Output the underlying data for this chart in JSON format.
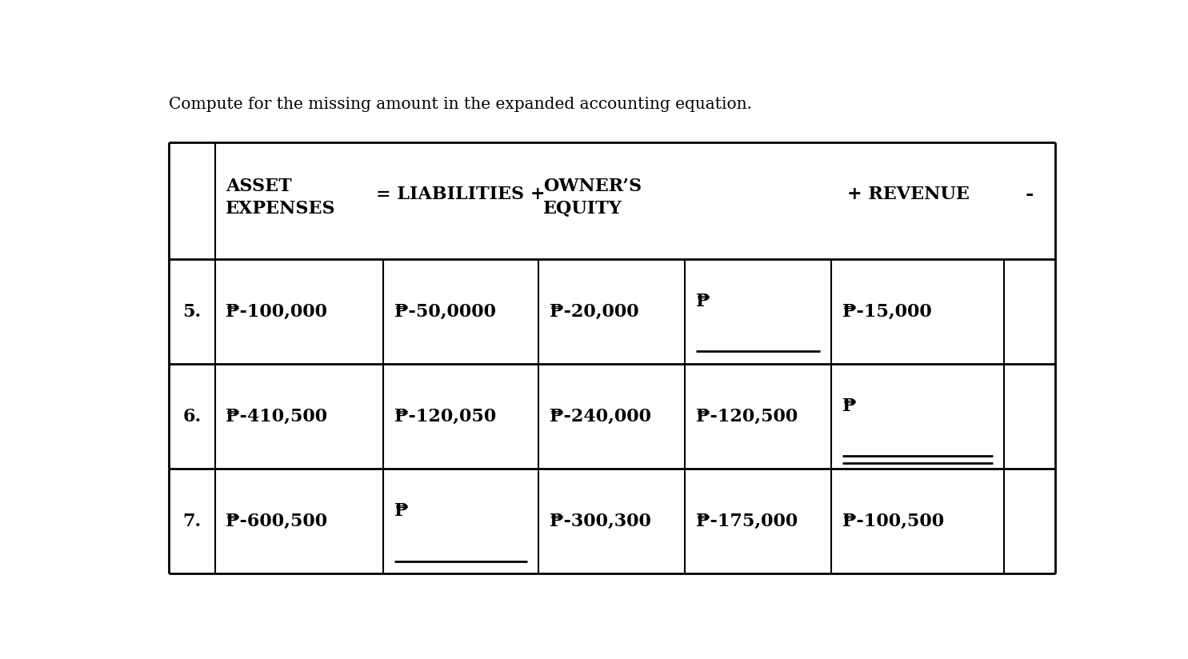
{
  "title": "Compute for the missing amount in the expanded accounting equation.",
  "title_fontsize": 14.5,
  "background_color": "#ffffff",
  "ff": "DejaVu Serif",
  "fsz": 16,
  "hsz": 16,
  "tl": 0.022,
  "tr": 0.985,
  "tt": 0.875,
  "tb": 0.025,
  "col_weights": [
    0.052,
    0.19,
    0.175,
    0.165,
    0.165,
    0.195,
    0.058
  ],
  "row_weights": [
    0.27,
    0.243,
    0.243,
    0.243
  ],
  "header": {
    "asset_line1": "ASSET",
    "asset_line2": "EXPENSES",
    "liab": "= LIABILITIES +",
    "owners_line1": "OWNER’S",
    "owners_line2": "EQUITY",
    "revenue": "+ REVENUE",
    "dash": "-"
  },
  "rows": [
    {
      "num": "5.",
      "asset": "₱-100,000",
      "liab": "₱-50,0000",
      "liab_blank": false,
      "equity": "₱-20,000",
      "revenue": "₱",
      "revenue_blank": true,
      "expenses": "₱-15,000",
      "expenses_blank": false
    },
    {
      "num": "6.",
      "asset": "₱-410,500",
      "liab": "₱-120,050",
      "liab_blank": false,
      "equity": "₱-240,000",
      "revenue": "₱-120,500",
      "revenue_blank": false,
      "expenses": "₱",
      "expenses_blank": true,
      "expenses_double_underline": true
    },
    {
      "num": "7.",
      "asset": "₱-600,500",
      "liab": "₱",
      "liab_blank": true,
      "equity": "₱-300,300",
      "revenue": "₱-175,000",
      "revenue_blank": false,
      "expenses": "₱-100,500",
      "expenses_blank": false
    }
  ]
}
